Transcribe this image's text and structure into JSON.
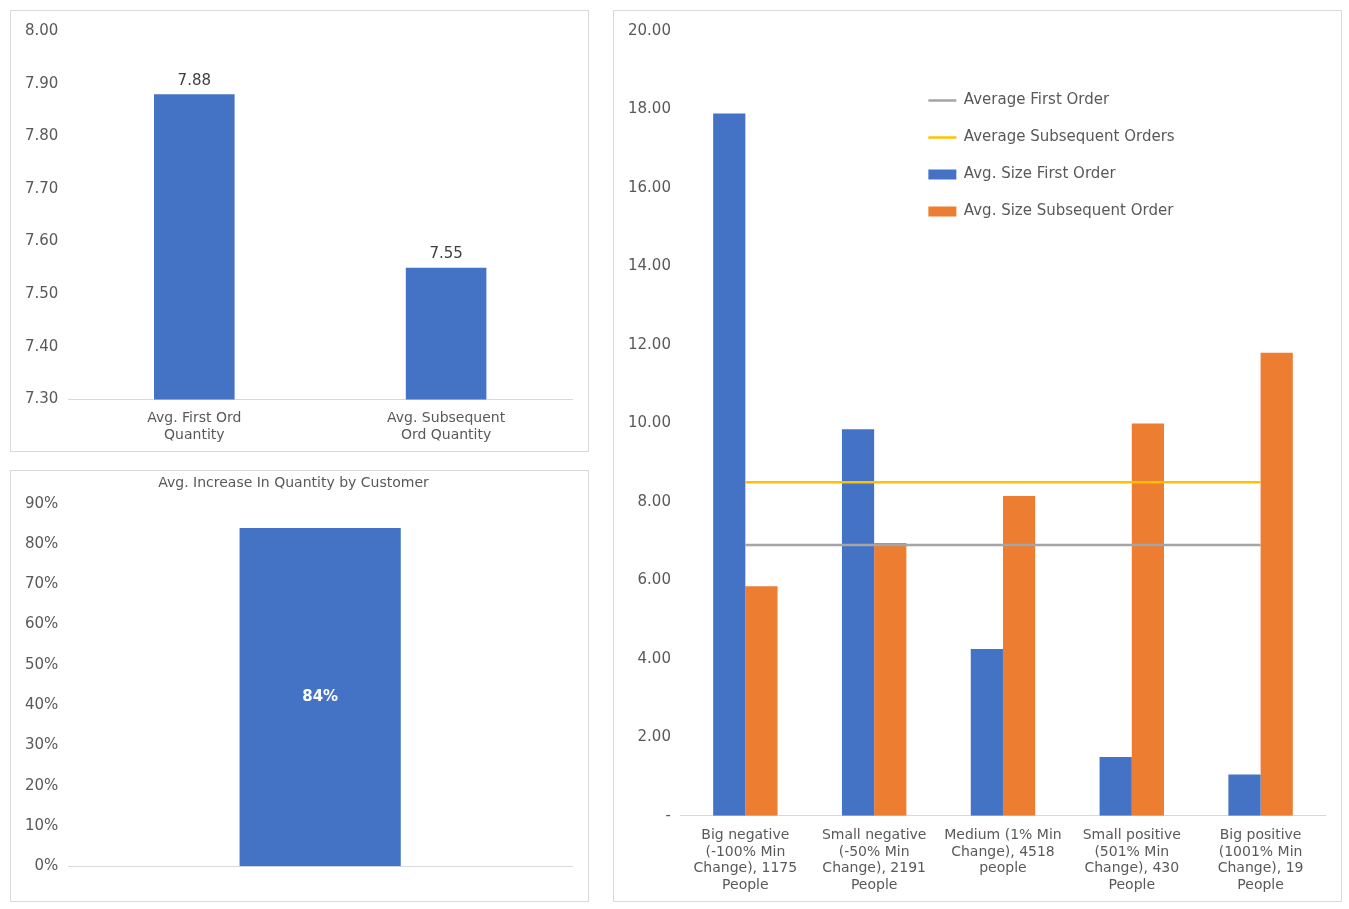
{
  "chart_data": [
    {
      "type": "bar",
      "categories": [
        "Avg. First Ord Quantity",
        "Avg. Subsequent Ord Quantity"
      ],
      "values": [
        7.88,
        7.55
      ],
      "color": "#4472c4",
      "data_labels": true,
      "ylim": [
        7.3,
        8.0
      ],
      "yticks": [
        {
          "value": 7.3,
          "label": "7.30"
        },
        {
          "value": 7.4,
          "label": "7.40"
        },
        {
          "value": 7.5,
          "label": "7.50"
        },
        {
          "value": 7.6,
          "label": "7.60"
        },
        {
          "value": 7.7,
          "label": "7.70"
        },
        {
          "value": 7.8,
          "label": "7.80"
        },
        {
          "value": 7.9,
          "label": "7.90"
        },
        {
          "value": 8.0,
          "label": "8.00"
        }
      ],
      "grid": false,
      "legend": false
    },
    {
      "type": "bar",
      "title": "Avg. Increase In Quantity by Customer",
      "categories": [
        null
      ],
      "values": [
        84
      ],
      "value_labels": [
        "84%"
      ],
      "color": "#4472c4",
      "ylim": [
        0,
        90
      ],
      "yticks": [
        {
          "value": 0,
          "label": "0%"
        },
        {
          "value": 10,
          "label": "10%"
        },
        {
          "value": 20,
          "label": "20%"
        },
        {
          "value": 30,
          "label": "30%"
        },
        {
          "value": 40,
          "label": "40%"
        },
        {
          "value": 50,
          "label": "50%"
        },
        {
          "value": 60,
          "label": "60%"
        },
        {
          "value": 70,
          "label": "70%"
        },
        {
          "value": 80,
          "label": "80%"
        },
        {
          "value": 90,
          "label": "90%"
        }
      ],
      "grid": false,
      "legend": false
    },
    {
      "type": "bar",
      "categories": [
        "Big negative (-100% Min Change), 1175 People",
        "Small negative (-50% Min Change), 2191 People",
        "Medium (1% Min Change), 4518 people",
        "Small positive (501% Min Change), 430 People",
        "Big positive (1001% Min Change), 19 People"
      ],
      "series": [
        {
          "name": "Avg. Size First Order",
          "color": "#4472c4",
          "values": [
            17.9,
            9.85,
            4.25,
            1.5,
            1.05
          ]
        },
        {
          "name": "Avg. Size Subsequent Order",
          "color": "#ed7d31",
          "values": [
            5.85,
            6.95,
            8.15,
            10.0,
            11.8
          ]
        },
        {
          "name": "Average First Order",
          "type": "line",
          "color": "#a5a5a5",
          "values": [
            6.9,
            6.9,
            6.9,
            6.9,
            6.9
          ]
        },
        {
          "name": "Average Subsequent Orders",
          "type": "line",
          "color": "#ffc000",
          "values": [
            8.5,
            8.5,
            8.5,
            8.5,
            8.5
          ]
        }
      ],
      "ylim": [
        0,
        20
      ],
      "yticks": [
        {
          "value": 0,
          "label": "-"
        },
        {
          "value": 2,
          "label": "2.00"
        },
        {
          "value": 4,
          "label": "4.00"
        },
        {
          "value": 6,
          "label": "6.00"
        },
        {
          "value": 8,
          "label": "8.00"
        },
        {
          "value": 10,
          "label": "10.00"
        },
        {
          "value": 12,
          "label": "12.00"
        },
        {
          "value": 14,
          "label": "14.00"
        },
        {
          "value": 16,
          "label": "16.00"
        },
        {
          "value": 18,
          "label": "18.00"
        },
        {
          "value": 20,
          "label": "20.00"
        }
      ],
      "grid": false,
      "legend": "top right",
      "marker": "none"
    }
  ]
}
